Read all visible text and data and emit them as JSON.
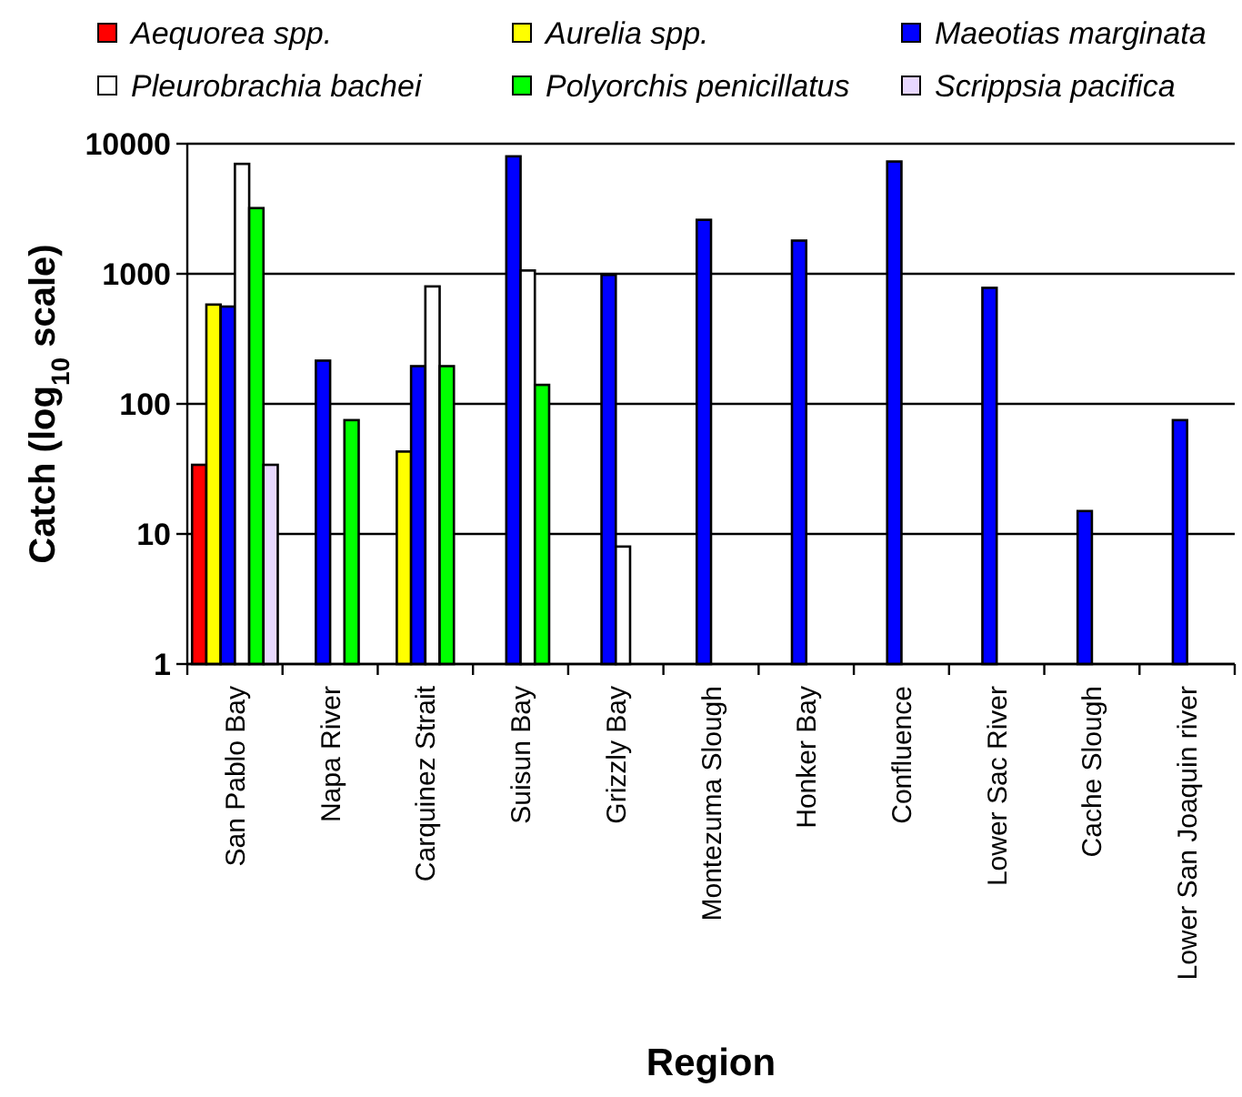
{
  "chart_data": {
    "type": "bar",
    "xlabel": "Region",
    "ylabel": "Catch (log$_{10}$ scale)",
    "categories": [
      "San Pablo Bay",
      "Napa River",
      "Carquinez Strait",
      "Suisun Bay",
      "Grizzly Bay",
      "Montezuma Slough",
      "Honker Bay",
      "Confluence",
      "Lower Sac River",
      "Cache Slough",
      "Lower San Joaquin river"
    ],
    "series": [
      {
        "name": "Aequorea spp.",
        "color": "#ff0000",
        "values": [
          34,
          null,
          null,
          null,
          null,
          null,
          null,
          null,
          null,
          null,
          null
        ]
      },
      {
        "name": "Aurelia spp.",
        "color": "#ffff00",
        "values": [
          580,
          null,
          43,
          null,
          null,
          null,
          null,
          null,
          null,
          null,
          null
        ]
      },
      {
        "name": "Maeotias marginata",
        "color": "#0000ff",
        "values": [
          560,
          215,
          195,
          8000,
          980,
          2600,
          1800,
          7300,
          780,
          15,
          75
        ]
      },
      {
        "name": "Pleurobrachia bachei",
        "color": "#ffffff",
        "values": [
          7000,
          null,
          800,
          1060,
          8,
          null,
          null,
          null,
          null,
          null,
          null
        ]
      },
      {
        "name": "Polyorchis penicillatus",
        "color": "#00ff00",
        "values": [
          3200,
          75,
          195,
          140,
          null,
          null,
          null,
          null,
          null,
          null,
          null
        ]
      },
      {
        "name": "Scrippsia pacifica",
        "color": "#e8d8ff",
        "values": [
          34,
          null,
          null,
          null,
          null,
          null,
          null,
          null,
          null,
          null,
          null
        ]
      }
    ],
    "log": true,
    "ylim": [
      1,
      10000
    ],
    "yticks": [
      1,
      10,
      100,
      1000,
      10000
    ],
    "grid": "y",
    "legend": "top"
  }
}
